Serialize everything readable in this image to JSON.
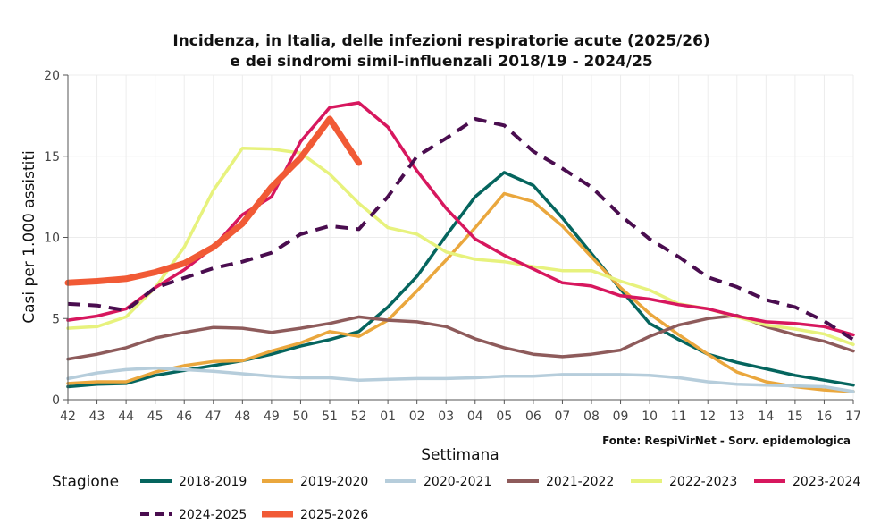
{
  "chart_data": {
    "type": "line",
    "title_line1": "Incidenza, in Italia, delle infezioni respiratorie acute (2025/26)",
    "title_line2": "e dei sindromi simil-influenzali 2018/19 - 2024/25",
    "xlabel": "Settimana",
    "ylabel": "Casi per 1.000 assistiti",
    "source": "Fonte: RespiVirNet - Sorv. epidemologica",
    "legend_title": "Stagione",
    "ylim": [
      0,
      20
    ],
    "yticks": [
      "0",
      "5",
      "10",
      "15",
      "20"
    ],
    "categories": [
      "42",
      "43",
      "44",
      "45",
      "46",
      "47",
      "48",
      "49",
      "50",
      "51",
      "52",
      "01",
      "02",
      "03",
      "04",
      "05",
      "06",
      "07",
      "08",
      "09",
      "10",
      "11",
      "12",
      "13",
      "14",
      "15",
      "16",
      "17"
    ],
    "series": [
      {
        "name": "2018-2019",
        "color": "#05655e",
        "dashed": false,
        "width": 3.5,
        "values": [
          0.8,
          0.95,
          1.0,
          1.5,
          1.8,
          2.1,
          2.4,
          2.8,
          3.3,
          3.7,
          4.2,
          5.7,
          7.6,
          10.1,
          12.5,
          14.0,
          13.2,
          11.2,
          9.0,
          6.8,
          4.7,
          3.7,
          2.8,
          2.3,
          1.9,
          1.5,
          1.2,
          0.9
        ]
      },
      {
        "name": "2019-2020",
        "color": "#eaa73d",
        "dashed": false,
        "width": 3.5,
        "values": [
          1.0,
          1.1,
          1.1,
          1.7,
          2.1,
          2.35,
          2.4,
          3.0,
          3.5,
          4.2,
          3.9,
          4.9,
          6.7,
          8.6,
          10.6,
          12.7,
          12.2,
          10.7,
          8.8,
          6.9,
          5.3,
          4.0,
          2.8,
          1.7,
          1.1,
          0.8,
          0.6,
          0.5
        ]
      },
      {
        "name": "2020-2021",
        "color": "#b6cddb",
        "dashed": false,
        "width": 3.5,
        "values": [
          1.3,
          1.65,
          1.85,
          1.95,
          1.85,
          1.75,
          1.6,
          1.45,
          1.35,
          1.35,
          1.2,
          1.25,
          1.3,
          1.3,
          1.35,
          1.45,
          1.45,
          1.55,
          1.55,
          1.55,
          1.5,
          1.35,
          1.1,
          0.95,
          0.9,
          0.85,
          0.8,
          0.5
        ]
      },
      {
        "name": "2021-2022",
        "color": "#8e5b5b",
        "dashed": false,
        "width": 3.5,
        "values": [
          2.5,
          2.8,
          3.2,
          3.8,
          4.15,
          4.45,
          4.4,
          4.15,
          4.4,
          4.7,
          5.1,
          4.9,
          4.8,
          4.5,
          3.75,
          3.2,
          2.8,
          2.65,
          2.8,
          3.05,
          3.9,
          4.6,
          5.0,
          5.2,
          4.5,
          4.0,
          3.6,
          3.0
        ]
      },
      {
        "name": "2022-2023",
        "color": "#e7f27d",
        "dashed": false,
        "width": 3.5,
        "values": [
          4.4,
          4.5,
          5.1,
          6.9,
          9.4,
          12.9,
          15.5,
          15.45,
          15.2,
          13.9,
          12.1,
          10.6,
          10.2,
          9.1,
          8.65,
          8.5,
          8.2,
          7.95,
          7.95,
          7.3,
          6.75,
          5.9,
          5.6,
          5.1,
          4.6,
          4.35,
          4.05,
          3.4
        ]
      },
      {
        "name": "2023-2024",
        "color": "#d7175e",
        "dashed": false,
        "width": 3.5,
        "values": [
          4.9,
          5.15,
          5.6,
          6.9,
          8.0,
          9.4,
          11.4,
          12.5,
          15.9,
          18.0,
          18.3,
          16.8,
          14.1,
          11.8,
          9.9,
          8.9,
          8.05,
          7.2,
          7.0,
          6.4,
          6.2,
          5.85,
          5.6,
          5.15,
          4.8,
          4.7,
          4.5,
          4.0
        ]
      },
      {
        "name": "2024-2025",
        "color": "#4a0d4f",
        "dashed": true,
        "width": 4,
        "values": [
          5.9,
          5.8,
          5.5,
          6.9,
          7.5,
          8.1,
          8.5,
          9.05,
          10.2,
          10.7,
          10.5,
          12.5,
          15.0,
          16.1,
          17.3,
          16.9,
          15.3,
          14.25,
          13.1,
          11.35,
          9.9,
          8.8,
          7.55,
          6.95,
          6.15,
          5.7,
          4.85,
          3.7
        ]
      },
      {
        "name": "2025-2026",
        "color": "#f15a35",
        "dashed": false,
        "width": 7,
        "values": [
          7.2,
          7.3,
          7.45,
          7.85,
          8.4,
          9.4,
          10.85,
          13.1,
          14.9,
          17.3,
          14.6,
          null,
          null,
          null,
          null,
          null,
          null,
          null,
          null,
          null,
          null,
          null,
          null,
          null,
          null,
          null,
          null,
          null
        ]
      }
    ]
  }
}
